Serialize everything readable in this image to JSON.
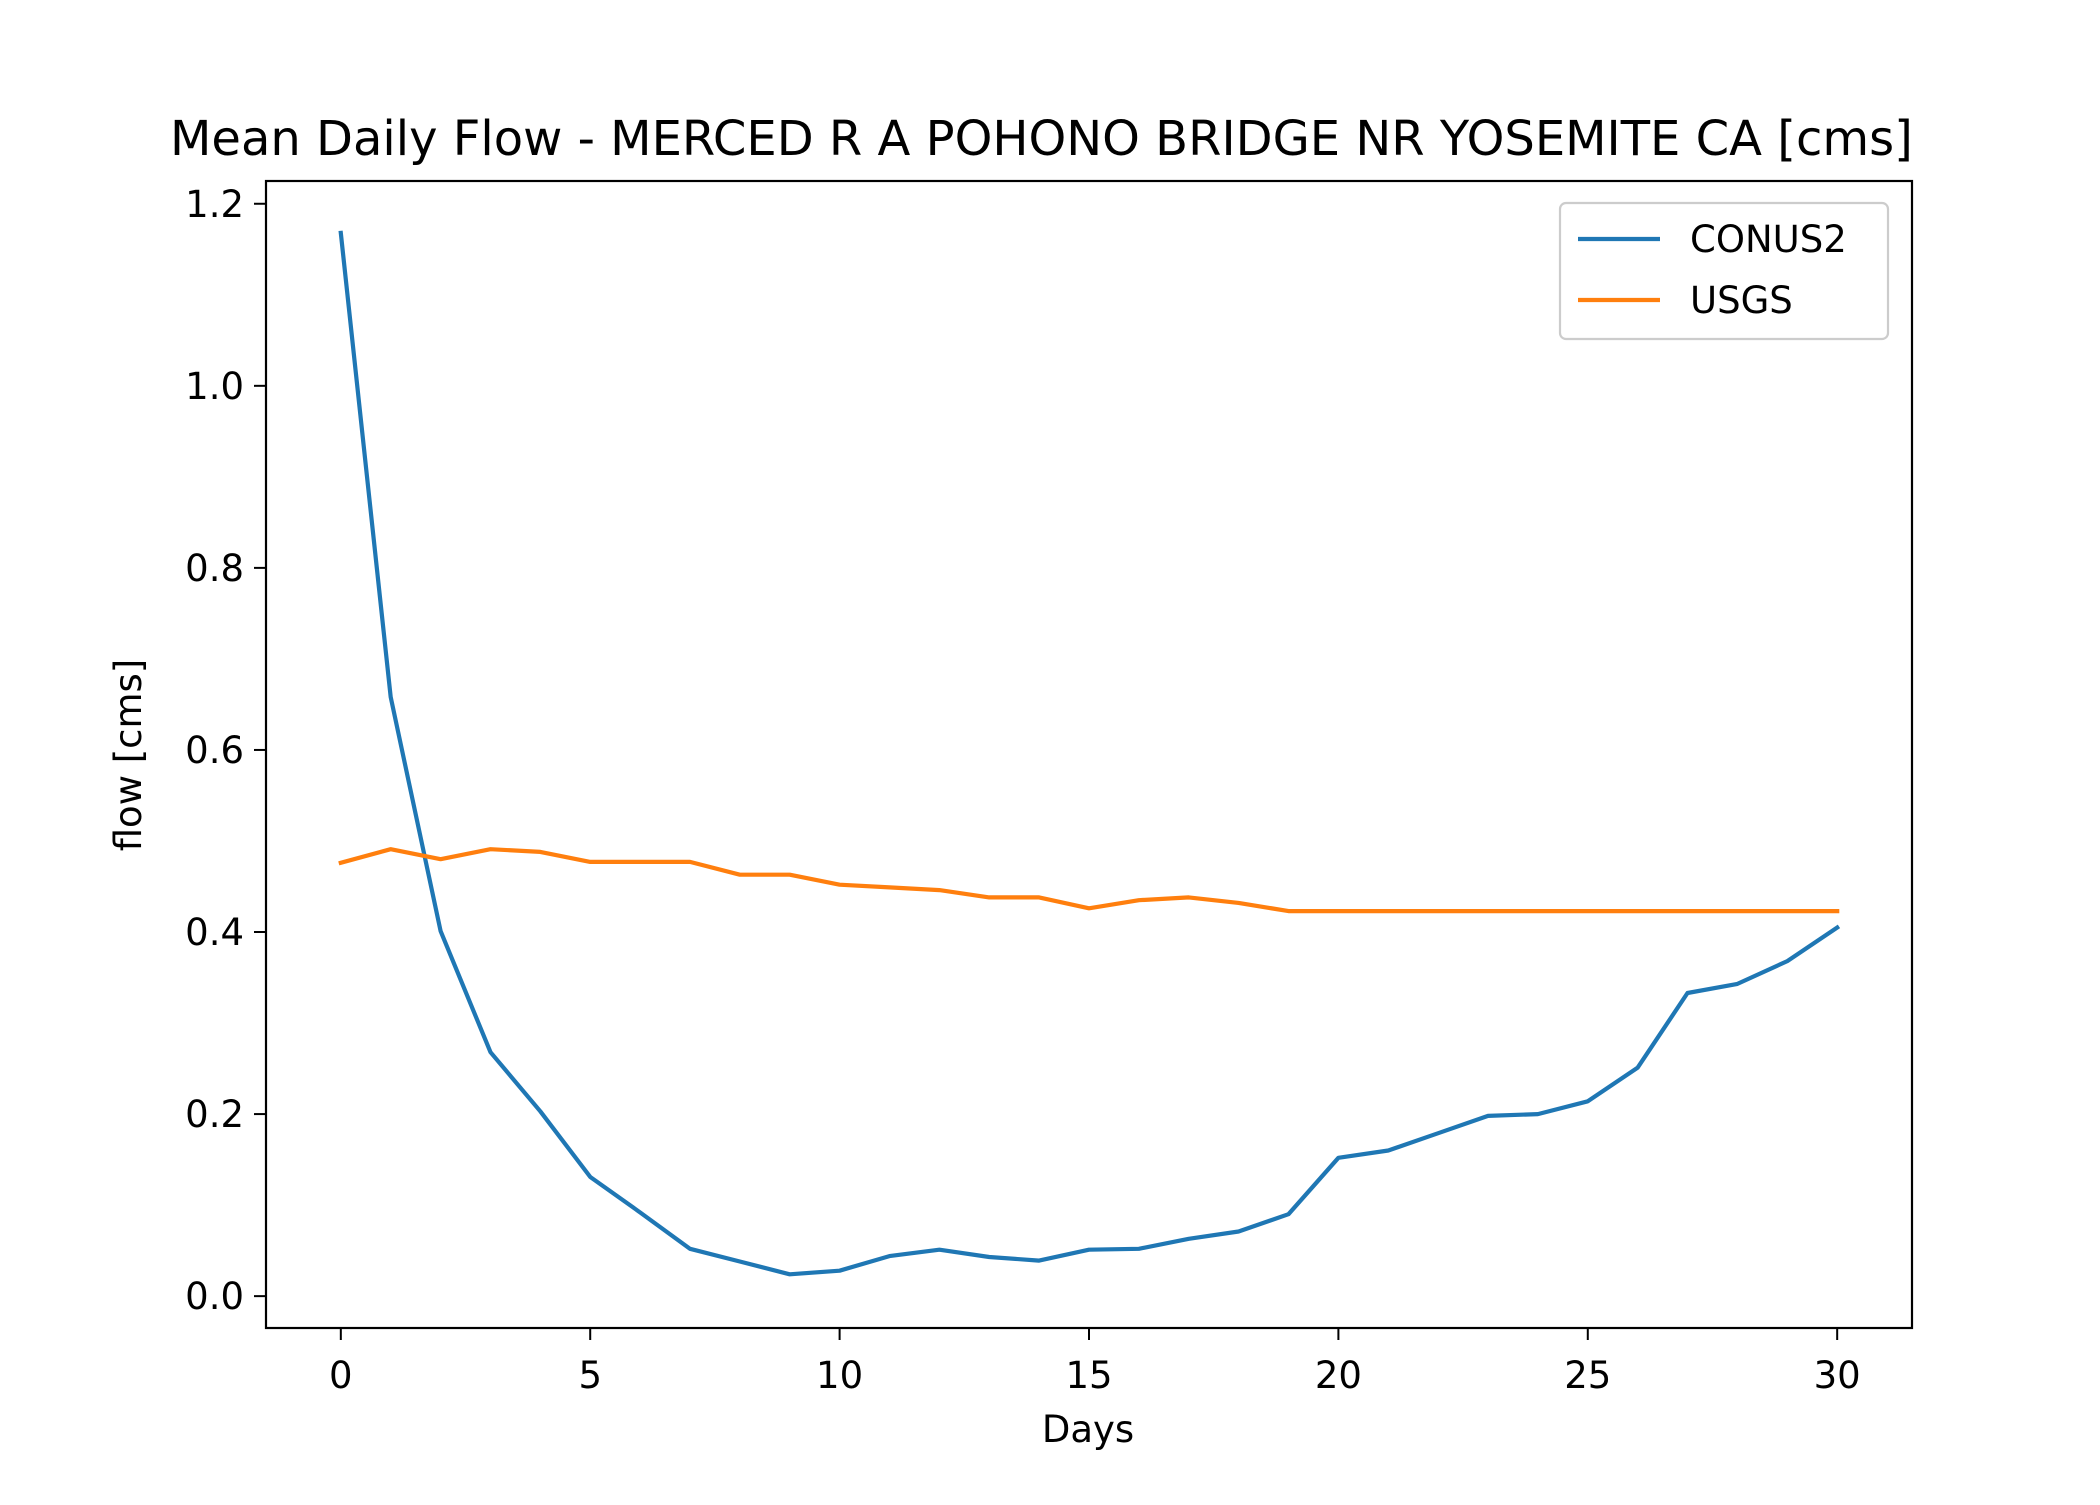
{
  "chart_data": {
    "type": "line",
    "title": "Mean Daily Flow - MERCED R A POHONO BRIDGE NR YOSEMITE CA [cms]",
    "xlabel": "Days",
    "ylabel": "flow [cms]",
    "xlim": [
      -1.5,
      31.5
    ],
    "ylim": [
      -0.035,
      1.225
    ],
    "xticks": [
      0,
      5,
      10,
      15,
      20,
      25,
      30
    ],
    "yticks": [
      0.0,
      0.2,
      0.4,
      0.6,
      0.8,
      1.0,
      1.2
    ],
    "ytick_labels": [
      "0.0",
      "0.2",
      "0.4",
      "0.6",
      "0.8",
      "1.0",
      "1.2"
    ],
    "grid": false,
    "legend_position": "top-right",
    "x": [
      0,
      1,
      2,
      3,
      4,
      5,
      6,
      7,
      8,
      9,
      10,
      11,
      12,
      13,
      14,
      15,
      16,
      17,
      18,
      19,
      20,
      21,
      22,
      23,
      24,
      25,
      26,
      27,
      28,
      29,
      30
    ],
    "series": [
      {
        "name": "CONUS2",
        "color": "#1f77b4",
        "values": [
          1.168,
          0.658,
          0.401,
          0.268,
          0.203,
          0.131,
          0.092,
          0.052,
          0.038,
          0.024,
          0.028,
          0.044,
          0.051,
          0.043,
          0.039,
          0.051,
          0.052,
          0.063,
          0.071,
          0.09,
          0.152,
          0.16,
          0.179,
          0.198,
          0.2,
          0.214,
          0.251,
          0.333,
          0.343,
          0.368,
          0.405
        ]
      },
      {
        "name": "USGS",
        "color": "#ff7f0e",
        "values": [
          0.476,
          0.491,
          0.48,
          0.491,
          0.488,
          0.477,
          0.477,
          0.477,
          0.463,
          0.463,
          0.452,
          0.449,
          0.446,
          0.438,
          0.438,
          0.426,
          0.435,
          0.438,
          0.432,
          0.423,
          0.423,
          0.423,
          0.423,
          0.423,
          0.423,
          0.423,
          0.423,
          0.423,
          0.423,
          0.423,
          0.423
        ]
      }
    ]
  }
}
